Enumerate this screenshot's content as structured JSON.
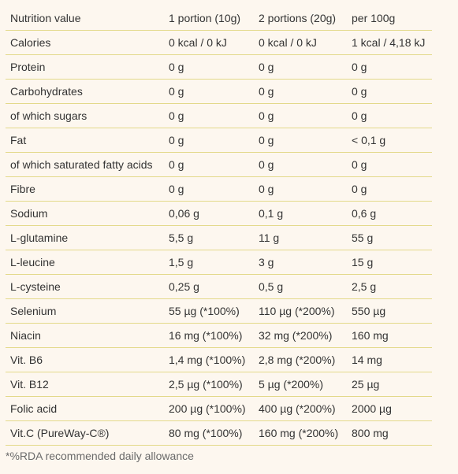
{
  "table": {
    "headers": [
      "Nutrition value",
      "1 portion (10g)",
      "2 portions (20g)",
      "per 100g"
    ],
    "rows": [
      [
        "Calories",
        "0 kcal / 0 kJ",
        "0 kcal / 0 kJ",
        "1 kcal / 4,18 kJ"
      ],
      [
        "Protein",
        "0 g",
        "0 g",
        "0 g"
      ],
      [
        "Carbohydrates",
        "0 g",
        "0 g",
        "0 g"
      ],
      [
        "of which sugars",
        "0 g",
        "0 g",
        "0 g"
      ],
      [
        "Fat",
        "0 g",
        "0 g",
        "< 0,1 g"
      ],
      [
        "of which saturated fatty acids",
        "0 g",
        "0 g",
        "0 g"
      ],
      [
        "Fibre",
        "0 g",
        "0 g",
        "0 g"
      ],
      [
        "Sodium",
        "0,06 g",
        "0,1 g",
        "0,6 g"
      ],
      [
        "L-glutamine",
        "5,5 g",
        "11 g",
        "55 g"
      ],
      [
        "L-leucine",
        "1,5 g",
        "3 g",
        "15 g"
      ],
      [
        "L-cysteine",
        "0,25 g",
        "0,5 g",
        "2,5 g"
      ],
      [
        "Selenium",
        "55 µg (*100%)",
        "110 µg (*200%)",
        "550 µg"
      ],
      [
        "Niacin",
        "16 mg (*100%)",
        "32 mg (*200%)",
        "160 mg"
      ],
      [
        "Vit. B6",
        "1,4 mg (*100%)",
        "2,8 mg (*200%)",
        "14 mg"
      ],
      [
        "Vit. B12",
        "2,5 µg (*100%)",
        "5 µg (*200%)",
        "25 µg"
      ],
      [
        "Folic acid",
        "200 µg (*100%)",
        "400 µg (*200%)",
        "2000 µg"
      ],
      [
        "Vit.C (PureWay-C®)",
        "80 mg (*100%)",
        "160 mg (*200%)",
        "800 mg"
      ]
    ]
  },
  "footnote": "*%RDA  recommended daily allowance",
  "colors": {
    "background": "#fdf7ef",
    "row_border": "#e3d98a",
    "text": "#333333"
  }
}
